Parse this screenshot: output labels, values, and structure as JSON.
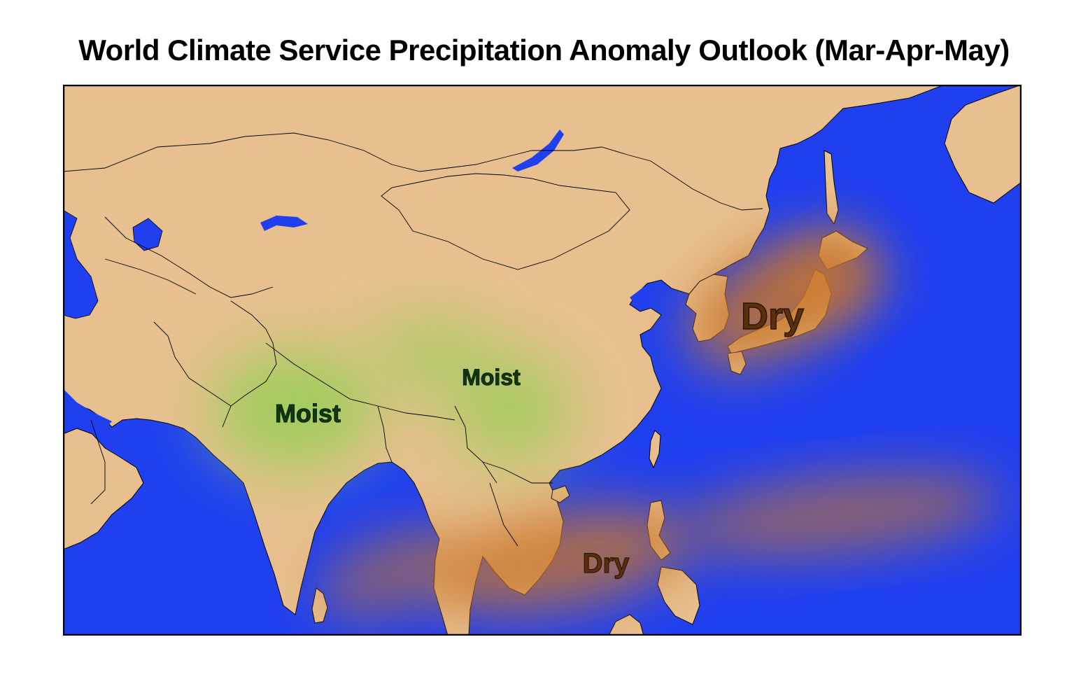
{
  "title": "World Climate Service Precipitation Anomaly Outlook (Mar-Apr-May)",
  "labels": {
    "moist_india": "Moist",
    "moist_china": "Moist",
    "dry_japan": "Dry",
    "dry_sea": "Dry"
  },
  "colors": {
    "ocean": "#2040f0",
    "land": "#e8c090",
    "moist": "#8fd050",
    "dry": "#c8742a",
    "moist_text": "#123812",
    "dry_text": "#5a300c",
    "border": "#000000"
  }
}
